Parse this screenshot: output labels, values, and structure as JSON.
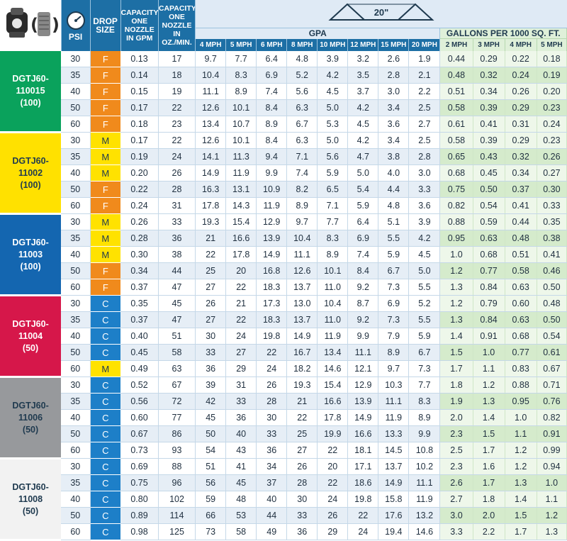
{
  "headers": {
    "psi": "PSI",
    "drop_size": "DROP SIZE",
    "capacity_gpm": "CAPACITY ONE NOZZLE IN GPM",
    "capacity_oz": "CAPACITY ONE NOZZLE IN OZ./MIN.",
    "spray_angle": "20\"",
    "gpa": "GPA",
    "gallons_per_1000": "GALLONS PER 1000 SQ. FT.",
    "gpa_speeds": [
      "4 MPH",
      "5 MPH",
      "6 MPH",
      "8 MPH",
      "10 MPH",
      "12 MPH",
      "15 MPH",
      "20 MPH"
    ],
    "g1000_speeds": [
      "2 MPH",
      "3 MPH",
      "4 MPH",
      "5 MPH"
    ]
  },
  "colors": {
    "header_blue": "#1d6fa5",
    "drop_F": "#f08a1c",
    "drop_M": "#ffe200",
    "drop_C": "#1d7fc8"
  },
  "nozzles": [
    {
      "line1": "DGTJ60-",
      "line2": "110015",
      "line3": "(100)",
      "color": "#0aa25c",
      "text_color": "#ffffff",
      "rows": [
        {
          "psi": "30",
          "drop": "F",
          "gpm": "0.13",
          "oz": "17",
          "gpa": [
            "9.7",
            "7.7",
            "6.4",
            "4.8",
            "3.9",
            "3.2",
            "2.6",
            "1.9"
          ],
          "g1000": [
            "0.44",
            "0.29",
            "0.22",
            "0.18"
          ]
        },
        {
          "psi": "35",
          "drop": "F",
          "gpm": "0.14",
          "oz": "18",
          "gpa": [
            "10.4",
            "8.3",
            "6.9",
            "5.2",
            "4.2",
            "3.5",
            "2.8",
            "2.1"
          ],
          "g1000": [
            "0.48",
            "0.32",
            "0.24",
            "0.19"
          ]
        },
        {
          "psi": "40",
          "drop": "F",
          "gpm": "0.15",
          "oz": "19",
          "gpa": [
            "11.1",
            "8.9",
            "7.4",
            "5.6",
            "4.5",
            "3.7",
            "3.0",
            "2.2"
          ],
          "g1000": [
            "0.51",
            "0.34",
            "0.26",
            "0.20"
          ]
        },
        {
          "psi": "50",
          "drop": "F",
          "gpm": "0.17",
          "oz": "22",
          "gpa": [
            "12.6",
            "10.1",
            "8.4",
            "6.3",
            "5.0",
            "4.2",
            "3.4",
            "2.5"
          ],
          "g1000": [
            "0.58",
            "0.39",
            "0.29",
            "0.23"
          ]
        },
        {
          "psi": "60",
          "drop": "F",
          "gpm": "0.18",
          "oz": "23",
          "gpa": [
            "13.4",
            "10.7",
            "8.9",
            "6.7",
            "5.3",
            "4.5",
            "3.6",
            "2.7"
          ],
          "g1000": [
            "0.61",
            "0.41",
            "0.31",
            "0.24"
          ]
        }
      ]
    },
    {
      "line1": "DGTJ60-",
      "line2": "11002",
      "line3": "(100)",
      "color": "#ffe100",
      "text_color": "#1f3a4f",
      "rows": [
        {
          "psi": "30",
          "drop": "M",
          "gpm": "0.17",
          "oz": "22",
          "gpa": [
            "12.6",
            "10.1",
            "8.4",
            "6.3",
            "5.0",
            "4.2",
            "3.4",
            "2.5"
          ],
          "g1000": [
            "0.58",
            "0.39",
            "0.29",
            "0.23"
          ]
        },
        {
          "psi": "35",
          "drop": "M",
          "gpm": "0.19",
          "oz": "24",
          "gpa": [
            "14.1",
            "11.3",
            "9.4",
            "7.1",
            "5.6",
            "4.7",
            "3.8",
            "2.8"
          ],
          "g1000": [
            "0.65",
            "0.43",
            "0.32",
            "0.26"
          ]
        },
        {
          "psi": "40",
          "drop": "M",
          "gpm": "0.20",
          "oz": "26",
          "gpa": [
            "14.9",
            "11.9",
            "9.9",
            "7.4",
            "5.9",
            "5.0",
            "4.0",
            "3.0"
          ],
          "g1000": [
            "0.68",
            "0.45",
            "0.34",
            "0.27"
          ]
        },
        {
          "psi": "50",
          "drop": "F",
          "gpm": "0.22",
          "oz": "28",
          "gpa": [
            "16.3",
            "13.1",
            "10.9",
            "8.2",
            "6.5",
            "5.4",
            "4.4",
            "3.3"
          ],
          "g1000": [
            "0.75",
            "0.50",
            "0.37",
            "0.30"
          ]
        },
        {
          "psi": "60",
          "drop": "F",
          "gpm": "0.24",
          "oz": "31",
          "gpa": [
            "17.8",
            "14.3",
            "11.9",
            "8.9",
            "7.1",
            "5.9",
            "4.8",
            "3.6"
          ],
          "g1000": [
            "0.82",
            "0.54",
            "0.41",
            "0.33"
          ]
        }
      ]
    },
    {
      "line1": "DGTJ60-",
      "line2": "11003",
      "line3": "(100)",
      "color": "#1466b0",
      "text_color": "#ffffff",
      "rows": [
        {
          "psi": "30",
          "drop": "M",
          "gpm": "0.26",
          "oz": "33",
          "gpa": [
            "19.3",
            "15.4",
            "12.9",
            "9.7",
            "7.7",
            "6.4",
            "5.1",
            "3.9"
          ],
          "g1000": [
            "0.88",
            "0.59",
            "0.44",
            "0.35"
          ]
        },
        {
          "psi": "35",
          "drop": "M",
          "gpm": "0.28",
          "oz": "36",
          "gpa": [
            "21",
            "16.6",
            "13.9",
            "10.4",
            "8.3",
            "6.9",
            "5.5",
            "4.2"
          ],
          "g1000": [
            "0.95",
            "0.63",
            "0.48",
            "0.38"
          ]
        },
        {
          "psi": "40",
          "drop": "M",
          "gpm": "0.30",
          "oz": "38",
          "gpa": [
            "22",
            "17.8",
            "14.9",
            "11.1",
            "8.9",
            "7.4",
            "5.9",
            "4.5"
          ],
          "g1000": [
            "1.0",
            "0.68",
            "0.51",
            "0.41"
          ]
        },
        {
          "psi": "50",
          "drop": "F",
          "gpm": "0.34",
          "oz": "44",
          "gpa": [
            "25",
            "20",
            "16.8",
            "12.6",
            "10.1",
            "8.4",
            "6.7",
            "5.0"
          ],
          "g1000": [
            "1.2",
            "0.77",
            "0.58",
            "0.46"
          ]
        },
        {
          "psi": "60",
          "drop": "F",
          "gpm": "0.37",
          "oz": "47",
          "gpa": [
            "27",
            "22",
            "18.3",
            "13.7",
            "11.0",
            "9.2",
            "7.3",
            "5.5"
          ],
          "g1000": [
            "1.3",
            "0.84",
            "0.63",
            "0.50"
          ]
        }
      ]
    },
    {
      "line1": "DGTJ60-",
      "line2": "11004",
      "line3": "(50)",
      "color": "#d6174a",
      "text_color": "#ffffff",
      "rows": [
        {
          "psi": "30",
          "drop": "C",
          "gpm": "0.35",
          "oz": "45",
          "gpa": [
            "26",
            "21",
            "17.3",
            "13.0",
            "10.4",
            "8.7",
            "6.9",
            "5.2"
          ],
          "g1000": [
            "1.2",
            "0.79",
            "0.60",
            "0.48"
          ]
        },
        {
          "psi": "35",
          "drop": "C",
          "gpm": "0.37",
          "oz": "47",
          "gpa": [
            "27",
            "22",
            "18.3",
            "13.7",
            "11.0",
            "9.2",
            "7.3",
            "5.5"
          ],
          "g1000": [
            "1.3",
            "0.84",
            "0.63",
            "0.50"
          ]
        },
        {
          "psi": "40",
          "drop": "C",
          "gpm": "0.40",
          "oz": "51",
          "gpa": [
            "30",
            "24",
            "19.8",
            "14.9",
            "11.9",
            "9.9",
            "7.9",
            "5.9"
          ],
          "g1000": [
            "1.4",
            "0.91",
            "0.68",
            "0.54"
          ]
        },
        {
          "psi": "50",
          "drop": "C",
          "gpm": "0.45",
          "oz": "58",
          "gpa": [
            "33",
            "27",
            "22",
            "16.7",
            "13.4",
            "11.1",
            "8.9",
            "6.7"
          ],
          "g1000": [
            "1.5",
            "1.0",
            "0.77",
            "0.61"
          ]
        },
        {
          "psi": "60",
          "drop": "M",
          "gpm": "0.49",
          "oz": "63",
          "gpa": [
            "36",
            "29",
            "24",
            "18.2",
            "14.6",
            "12.1",
            "9.7",
            "7.3"
          ],
          "g1000": [
            "1.7",
            "1.1",
            "0.83",
            "0.67"
          ]
        }
      ]
    },
    {
      "line1": "DGTJ60-",
      "line2": "11006",
      "line3": "(50)",
      "color": "#97999c",
      "text_color": "#1f3a4f",
      "rows": [
        {
          "psi": "30",
          "drop": "C",
          "gpm": "0.52",
          "oz": "67",
          "gpa": [
            "39",
            "31",
            "26",
            "19.3",
            "15.4",
            "12.9",
            "10.3",
            "7.7"
          ],
          "g1000": [
            "1.8",
            "1.2",
            "0.88",
            "0.71"
          ]
        },
        {
          "psi": "35",
          "drop": "C",
          "gpm": "0.56",
          "oz": "72",
          "gpa": [
            "42",
            "33",
            "28",
            "21",
            "16.6",
            "13.9",
            "11.1",
            "8.3"
          ],
          "g1000": [
            "1.9",
            "1.3",
            "0.95",
            "0.76"
          ]
        },
        {
          "psi": "40",
          "drop": "C",
          "gpm": "0.60",
          "oz": "77",
          "gpa": [
            "45",
            "36",
            "30",
            "22",
            "17.8",
            "14.9",
            "11.9",
            "8.9"
          ],
          "g1000": [
            "2.0",
            "1.4",
            "1.0",
            "0.82"
          ]
        },
        {
          "psi": "50",
          "drop": "C",
          "gpm": "0.67",
          "oz": "86",
          "gpa": [
            "50",
            "40",
            "33",
            "25",
            "19.9",
            "16.6",
            "13.3",
            "9.9"
          ],
          "g1000": [
            "2.3",
            "1.5",
            "1.1",
            "0.91"
          ]
        },
        {
          "psi": "60",
          "drop": "C",
          "gpm": "0.73",
          "oz": "93",
          "gpa": [
            "54",
            "43",
            "36",
            "27",
            "22",
            "18.1",
            "14.5",
            "10.8"
          ],
          "g1000": [
            "2.5",
            "1.7",
            "1.2",
            "0.99"
          ]
        }
      ]
    },
    {
      "line1": "DGTJ60-",
      "line2": "11008",
      "line3": "(50)",
      "color": "#f2f2f2",
      "text_color": "#1f3a4f",
      "rows": [
        {
          "psi": "30",
          "drop": "C",
          "gpm": "0.69",
          "oz": "88",
          "gpa": [
            "51",
            "41",
            "34",
            "26",
            "20",
            "17.1",
            "13.7",
            "10.2"
          ],
          "g1000": [
            "2.3",
            "1.6",
            "1.2",
            "0.94"
          ]
        },
        {
          "psi": "35",
          "drop": "C",
          "gpm": "0.75",
          "oz": "96",
          "gpa": [
            "56",
            "45",
            "37",
            "28",
            "22",
            "18.6",
            "14.9",
            "11.1"
          ],
          "g1000": [
            "2.6",
            "1.7",
            "1.3",
            "1.0"
          ]
        },
        {
          "psi": "40",
          "drop": "C",
          "gpm": "0.80",
          "oz": "102",
          "gpa": [
            "59",
            "48",
            "40",
            "30",
            "24",
            "19.8",
            "15.8",
            "11.9"
          ],
          "g1000": [
            "2.7",
            "1.8",
            "1.4",
            "1.1"
          ]
        },
        {
          "psi": "50",
          "drop": "C",
          "gpm": "0.89",
          "oz": "114",
          "gpa": [
            "66",
            "53",
            "44",
            "33",
            "26",
            "22",
            "17.6",
            "13.2"
          ],
          "g1000": [
            "3.0",
            "2.0",
            "1.5",
            "1.2"
          ]
        },
        {
          "psi": "60",
          "drop": "C",
          "gpm": "0.98",
          "oz": "125",
          "gpa": [
            "73",
            "58",
            "49",
            "36",
            "29",
            "24",
            "19.4",
            "14.6"
          ],
          "g1000": [
            "3.3",
            "2.2",
            "1.7",
            "1.3"
          ]
        }
      ]
    }
  ]
}
